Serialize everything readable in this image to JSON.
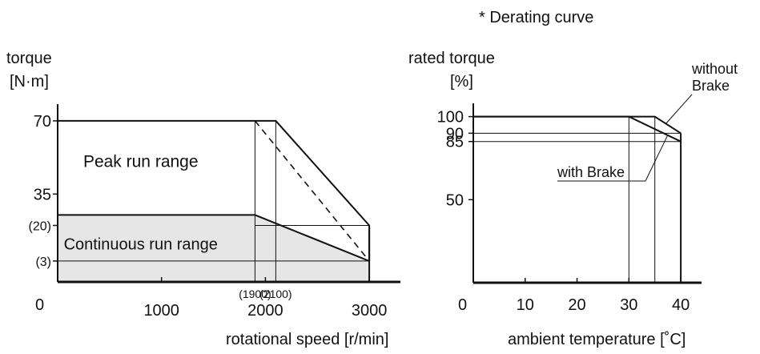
{
  "note": "* Derating curve",
  "chart_data": [
    {
      "type": "area",
      "ylabel_line1": "torque",
      "ylabel_line2": "[N·m]",
      "xlabel": "rotational speed [r/min]",
      "origin_label": "0",
      "x_ticks": [
        {
          "value": 1000,
          "label": "1000"
        },
        {
          "value": 2000,
          "label": "2000"
        },
        {
          "value": 3000,
          "label": "3000"
        }
      ],
      "y_ticks": [
        {
          "value": 70,
          "label": "70"
        },
        {
          "value": 35,
          "label": "35"
        },
        {
          "value": 20,
          "label": "(20)"
        },
        {
          "value": 3,
          "label": "(3)"
        }
      ],
      "xlim": [
        0,
        3300
      ],
      "ylim": [
        -7,
        78
      ],
      "marker_labels": [
        {
          "value": 1900,
          "label": "(1900)"
        },
        {
          "value": 2100,
          "label": "(2100)"
        }
      ],
      "regions": [
        {
          "name": "Peak run range",
          "points": [
            [
              0,
              70
            ],
            [
              2100,
              70
            ],
            [
              3000,
              20
            ],
            [
              3000,
              3
            ],
            [
              0,
              3
            ]
          ]
        },
        {
          "name": "Continuous run range",
          "points": [
            [
              0,
              25
            ],
            [
              1900,
              25
            ],
            [
              3000,
              3
            ],
            [
              3000,
              -7
            ],
            [
              0,
              -7
            ]
          ]
        }
      ],
      "dashed_line": [
        [
          1900,
          70
        ],
        [
          3000,
          3
        ]
      ],
      "peak_line": [
        [
          0,
          70
        ],
        [
          2100,
          70
        ],
        [
          3000,
          20
        ],
        [
          3000,
          3
        ]
      ],
      "continuous_line": [
        [
          0,
          25
        ],
        [
          1900,
          25
        ],
        [
          3000,
          3
        ]
      ]
    },
    {
      "type": "line",
      "ylabel_line1": "rated torque",
      "ylabel_line2": "[%]",
      "xlabel": "ambient temperature [˚C]",
      "origin_label": "0",
      "x_ticks": [
        {
          "value": 10,
          "label": "10"
        },
        {
          "value": 20,
          "label": "20"
        },
        {
          "value": 30,
          "label": "30"
        },
        {
          "value": 40,
          "label": "40"
        }
      ],
      "y_ticks": [
        {
          "value": 100,
          "label": "100"
        },
        {
          "value": 90,
          "label": "90"
        },
        {
          "value": 85,
          "label": "85"
        },
        {
          "value": 50,
          "label": "50"
        }
      ],
      "xlim": [
        0,
        44
      ],
      "ylim": [
        0,
        108
      ],
      "series": [
        {
          "name": "without Brake",
          "label_line1": "without",
          "label_line2": "Brake",
          "x": [
            0,
            35,
            40
          ],
          "y": [
            100,
            100,
            90
          ]
        },
        {
          "name": "with Brake",
          "label_line1": "with Brake",
          "x": [
            0,
            30,
            40
          ],
          "y": [
            100,
            100,
            85
          ]
        }
      ]
    }
  ]
}
